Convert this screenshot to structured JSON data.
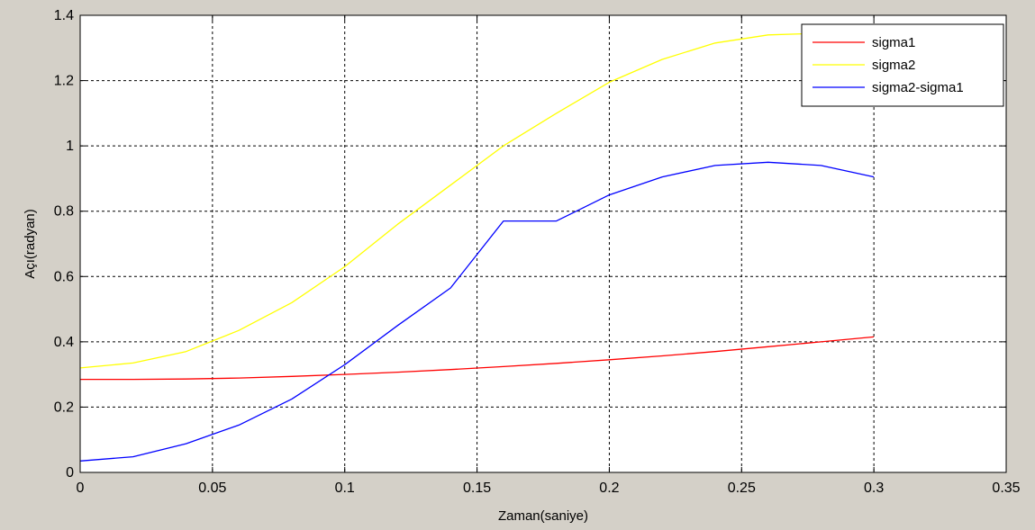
{
  "colors": {
    "figure_bg": "#d4d0c8",
    "axes_bg": "#ffffff",
    "grid": "#000000"
  },
  "chart_data": {
    "type": "line",
    "title": "",
    "xlabel": "Zaman(saniye)",
    "ylabel": "Açı(radyan)",
    "xlim": [
      0,
      0.35
    ],
    "ylim": [
      0,
      1.4
    ],
    "xticks": [
      0,
      0.05,
      0.1,
      0.15,
      0.2,
      0.25,
      0.3,
      0.35
    ],
    "xtick_labels": [
      "0",
      "0.05",
      "0.1",
      "0.15",
      "0.2",
      "0.25",
      "0.3",
      "0.35"
    ],
    "yticks": [
      0,
      0.2,
      0.4,
      0.6,
      0.8,
      1,
      1.2,
      1.4
    ],
    "ytick_labels": [
      "0",
      "0.2",
      "0.4",
      "0.6",
      "0.8",
      "1",
      "1.2",
      "1.4"
    ],
    "grid": true,
    "grid_style": "dashed",
    "legend_position": "top-right",
    "series": [
      {
        "name": "sigma1",
        "color": "#ff0000",
        "x": [
          0,
          0.02,
          0.04,
          0.06,
          0.08,
          0.1,
          0.12,
          0.14,
          0.16,
          0.18,
          0.2,
          0.22,
          0.24,
          0.26,
          0.28,
          0.3
        ],
        "y": [
          0.285,
          0.285,
          0.286,
          0.289,
          0.294,
          0.3,
          0.307,
          0.315,
          0.324,
          0.334,
          0.345,
          0.357,
          0.37,
          0.385,
          0.4,
          0.415
        ]
      },
      {
        "name": "sigma2",
        "color": "#ffff00",
        "x": [
          0,
          0.02,
          0.04,
          0.06,
          0.08,
          0.1,
          0.12,
          0.14,
          0.16,
          0.18,
          0.2,
          0.22,
          0.24,
          0.26,
          0.28
        ],
        "y": [
          0.32,
          0.335,
          0.37,
          0.435,
          0.52,
          0.63,
          0.76,
          0.88,
          1.0,
          1.1,
          1.195,
          1.265,
          1.315,
          1.34,
          1.345
        ]
      },
      {
        "name": "sigma2-sigma1",
        "color": "#0000ff",
        "x": [
          0,
          0.02,
          0.04,
          0.06,
          0.08,
          0.1,
          0.12,
          0.14,
          0.16,
          0.18,
          0.2,
          0.22,
          0.24,
          0.26,
          0.28,
          0.3
        ],
        "y": [
          0.035,
          0.048,
          0.088,
          0.145,
          0.225,
          0.33,
          0.45,
          0.565,
          0.77,
          0.77,
          0.85,
          0.905,
          0.94,
          0.95,
          0.94,
          0.905
        ]
      }
    ]
  }
}
